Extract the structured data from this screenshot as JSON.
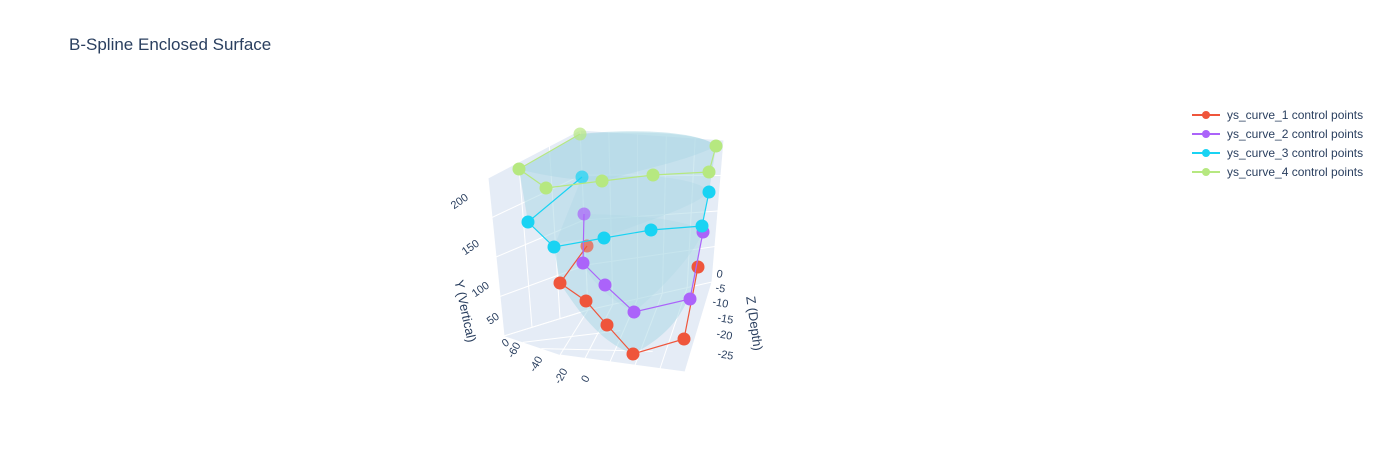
{
  "chart_data": {
    "type": "scatter3d",
    "title": "B-Spline Enclosed Surface",
    "axes": {
      "x": {
        "label": "",
        "ticks": [
          "-60",
          "-40",
          "-20",
          "0"
        ]
      },
      "y": {
        "label": "Y (Vertical)",
        "ticks": [
          "0",
          "50",
          "100",
          "150",
          "200"
        ]
      },
      "z": {
        "label": "Z (Depth)",
        "ticks": [
          "0",
          "-5",
          "-10",
          "-15",
          "-20",
          "-25"
        ]
      }
    },
    "legend_position": "top-right",
    "surface_color": "#add8e6",
    "series": [
      {
        "name": "ys_curve_1 control points",
        "color": "#ef553b",
        "y": 60,
        "points": [
          [
            -57,
            -3
          ],
          [
            -40,
            -12
          ],
          [
            -22,
            -18
          ],
          [
            0,
            -25
          ],
          [
            30,
            -25
          ],
          [
            47,
            -2
          ]
        ]
      },
      {
        "name": "ys_curve_2 control points",
        "color": "#ab63fa",
        "y": 110,
        "points": [
          [
            -28,
            -3
          ],
          [
            -20,
            -12
          ],
          [
            -5,
            -18
          ],
          [
            25,
            -25
          ],
          [
            40,
            -25
          ],
          [
            48,
            -2
          ]
        ]
      },
      {
        "name": "ys_curve_3 control points",
        "color": "#19d3f3",
        "y": 160,
        "points": [
          [
            -48,
            -3
          ],
          [
            -45,
            -12
          ],
          [
            -22,
            -18
          ],
          [
            0,
            -25
          ],
          [
            30,
            -25
          ],
          [
            48,
            -2
          ]
        ]
      },
      {
        "name": "ys_curve_4 control points",
        "color": "#b6e880",
        "y": 210,
        "points": [
          [
            -30,
            -3
          ],
          [
            -60,
            -12
          ],
          [
            -25,
            -18
          ],
          [
            -5,
            -25
          ],
          [
            25,
            -25
          ],
          [
            48,
            -2
          ]
        ]
      }
    ]
  }
}
